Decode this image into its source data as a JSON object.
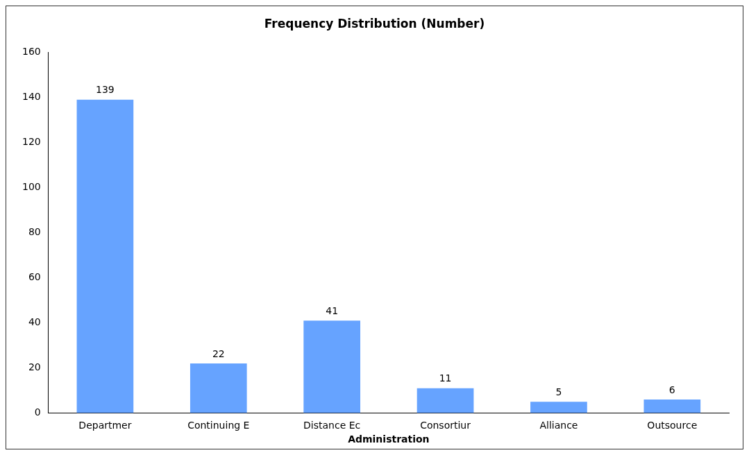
{
  "chart_data": {
    "type": "bar",
    "title": "Frequency Distribution (Number)",
    "xlabel": "Administration",
    "categories": [
      "Departmer",
      "Continuing E",
      "Distance Ec",
      "Consortiur",
      "Alliance",
      "Outsource"
    ],
    "values": [
      139,
      22,
      41,
      11,
      5,
      6
    ],
    "color": "#66a3ff",
    "ylim": [
      0,
      160
    ],
    "yticks": [
      0,
      20,
      40,
      60,
      80,
      100,
      120,
      140,
      160
    ],
    "grid": false,
    "legend": false,
    "data_labels": true
  }
}
